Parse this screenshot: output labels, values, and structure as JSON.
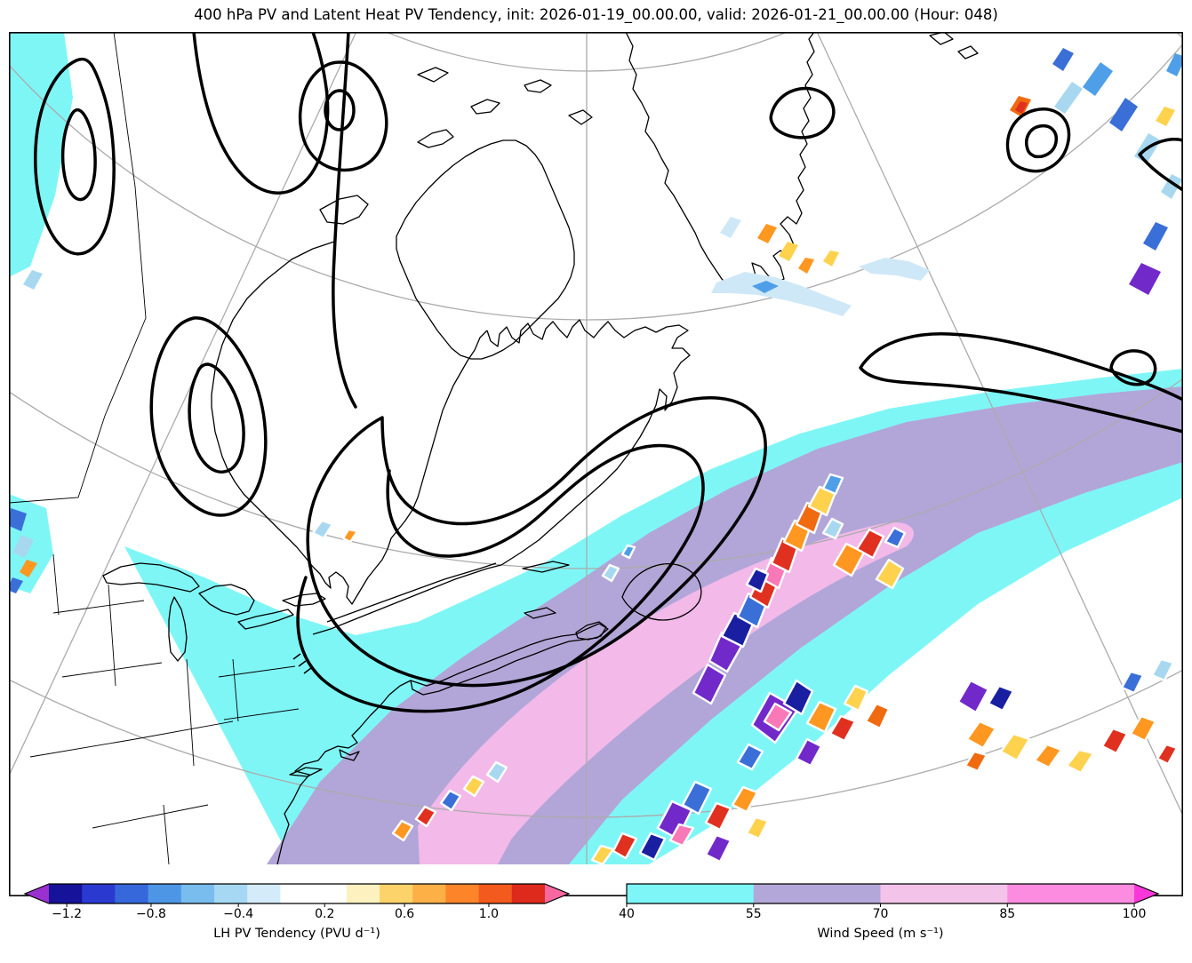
{
  "title": "400 hPa PV and Latent Heat PV Tendency, init: 2026-01-19_00.00.00, valid: 2026-01-21_00.00.00 (Hour: 048)",
  "chart_data": {
    "type": "heatmap",
    "title": "400 hPa PV and Latent Heat PV Tendency",
    "init_time": "2026-01-19_00.00.00",
    "valid_time": "2026-01-21_00.00.00",
    "forecast_hour": "048",
    "region": "Eastern North America, Greenland and the Northwest Atlantic (polar stereographic view)",
    "fields": [
      {
        "name": "LH PV Tendency",
        "units": "PVU d⁻¹",
        "style": "filled patches along the jet",
        "scale_ticks": [
          -1.2,
          -0.8,
          -0.4,
          0.2,
          0.6,
          1.0
        ]
      },
      {
        "name": "Wind Speed",
        "units": "m s⁻¹",
        "style": "filled bands (jet stream swath from the US east coast to the northeast Atlantic)",
        "scale_ticks": [
          40,
          55,
          70,
          85,
          100
        ]
      },
      {
        "name": "400 hPa PV",
        "style": "thick black contours (troughs over eastern Canada, top-left lobes, Atlantic streamer)"
      }
    ],
    "legend_position": "bottom",
    "grid": "gray graticule arcs and meridians"
  },
  "colors": {
    "wind_40_55": "#7ff6f6",
    "wind_55_70": "#b2a6d8",
    "wind_70_85": "#f2b9e9",
    "graticule": "#ababab",
    "coastline": "#000000",
    "pv_contour": "#000000"
  },
  "colorbars": [
    {
      "label": "LH PV Tendency (PVU d⁻¹)",
      "colors": [
        "#16129a",
        "#2a3ad0",
        "#3668dc",
        "#4d96e6",
        "#79bcee",
        "#a6d8f4",
        "#d4ecfa",
        "#ffffff",
        "#ffffff",
        "#fdf2bf",
        "#fcd36a",
        "#fdb045",
        "#fd8428",
        "#f25a1e",
        "#dd2a1c"
      ],
      "arrow_left": "#9b30d0",
      "arrow_right": "#f768a1",
      "ticks": [
        {
          "label": "−1.2",
          "pos": 3.6
        },
        {
          "label": "−0.8",
          "pos": 20.6
        },
        {
          "label": "−0.4",
          "pos": 38.2
        },
        {
          "label": "0.2",
          "pos": 55.6
        },
        {
          "label": "0.6",
          "pos": 71.7
        },
        {
          "label": "1.0",
          "pos": 88.7
        }
      ]
    },
    {
      "label": "Wind Speed (m s⁻¹)",
      "colors": [
        "#7ef6f8",
        "#b3a7d9",
        "#f3c3ea",
        "#fb8ce0"
      ],
      "arrow_left": null,
      "arrow_right": "#f937d8",
      "ticks": [
        {
          "label": "40",
          "pos": 0
        },
        {
          "label": "55",
          "pos": 25
        },
        {
          "label": "70",
          "pos": 50
        },
        {
          "label": "85",
          "pos": 75
        },
        {
          "label": "100",
          "pos": 100
        }
      ]
    }
  ]
}
